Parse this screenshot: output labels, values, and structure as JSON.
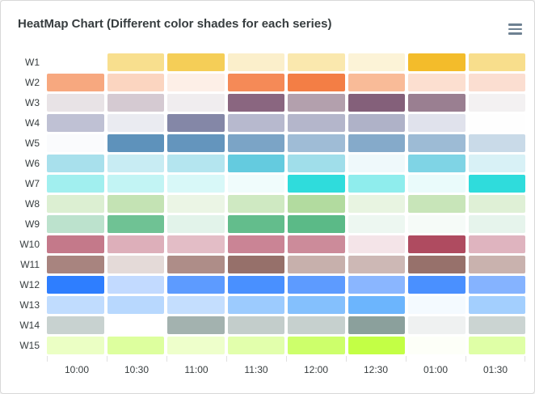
{
  "header": {
    "title": "HeatMap Chart (Different color shades for each series)"
  },
  "style": {
    "background": "#ffffff",
    "card_border": "#d8d8d8",
    "title_color": "#373d3f",
    "axis_label_color": "#373d3f",
    "tick_color": "#e0e0e0",
    "menu_icon_color": "#6e8192",
    "cell_gap_color": "#ffffff"
  },
  "chart_data": {
    "type": "heatmap",
    "title": "HeatMap Chart (Different color shades for each series)",
    "legend_position": "none",
    "grid": "off",
    "x_categories": [
      "10:00",
      "10:30",
      "11:00",
      "11:30",
      "12:00",
      "12:30",
      "01:00",
      "01:30"
    ],
    "y_categories": [
      "W1",
      "W2",
      "W3",
      "W4",
      "W5",
      "W6",
      "W7",
      "W8",
      "W9",
      "W10",
      "W11",
      "W12",
      "W13",
      "W14",
      "W15"
    ],
    "series": [
      {
        "name": "W1",
        "base_color": "#F3B415",
        "cell_colors": [
          "#FFFFFF",
          "#F8DF8E",
          "#F5CE57",
          "#FBEFCB",
          "#FAE8AE",
          "#FCF3D7",
          "#F3BC2B",
          "#F8DE8C"
        ]
      },
      {
        "name": "W2",
        "base_color": "#F27036",
        "cell_colors": [
          "#F7A87F",
          "#FBD5C0",
          "#FDEFE7",
          "#F58A57",
          "#F37E45",
          "#F9BB98",
          "#FCDFD0",
          "#FBDED1"
        ]
      },
      {
        "name": "W3",
        "base_color": "#663F59",
        "cell_colors": [
          "#E8E3E6",
          "#D5CAD2",
          "#F0EDEF",
          "#8A6680",
          "#B3A0AD",
          "#84607A",
          "#9A7F91",
          "#F3F1F2"
        ]
      },
      {
        "name": "W4",
        "base_color": "#6A6E94",
        "cell_colors": [
          "#BFC1D4",
          "#EAEBF1",
          "#8487A7",
          "#B7B9CE",
          "#B4B6CB",
          "#AFB2C8",
          "#E0E2EC",
          "#FEFEFE"
        ]
      },
      {
        "name": "W5",
        "base_color": "#4E88B4",
        "cell_colors": [
          "#FAFBFD",
          "#5E92BB",
          "#6495BD",
          "#7BA4C6",
          "#9FBCD6",
          "#85AACA",
          "#9DBBD5",
          "#C9DAE8"
        ]
      },
      {
        "name": "W6",
        "base_color": "#00A7C6",
        "cell_colors": [
          "#A8E0EC",
          "#C8ECF3",
          "#B4E5EF",
          "#64CBDF",
          "#A0DEEA",
          "#EFF9FB",
          "#7FD4E5",
          "#D8F1F6"
        ]
      },
      {
        "name": "W7",
        "base_color": "#18D8D8",
        "cell_colors": [
          "#A1EFEF",
          "#C2F4F4",
          "#D8F8F8",
          "#F0FCFC",
          "#2FDCDC",
          "#8FEDED",
          "#EAFBFB",
          "#2FDCDC"
        ]
      },
      {
        "name": "W8",
        "base_color": "#A9D794",
        "cell_colors": [
          "#DCEFD2",
          "#C4E3B4",
          "#EBF5E5",
          "#CFE9C2",
          "#B2DB9F",
          "#E8F4E1",
          "#C8E5B9",
          "#DFF0D6"
        ]
      },
      {
        "name": "W9",
        "base_color": "#46AF78",
        "cell_colors": [
          "#BCE2CD",
          "#6FC294",
          "#E2F3EA",
          "#63BD8C",
          "#5BBA87",
          "#EDF7F1",
          "#F6FBF8",
          "#E6F4EC"
        ]
      },
      {
        "name": "W10",
        "base_color": "#A93F55",
        "cell_colors": [
          "#C4798A",
          "#DDAFBA",
          "#E3BDC6",
          "#CA8495",
          "#CC8B9A",
          "#F4E4E8",
          "#AF4B60",
          "#DFB4BF"
        ]
      },
      {
        "name": "W11",
        "base_color": "#8C5E58",
        "cell_colors": [
          "#A8847F",
          "#E4DAD8",
          "#AE8D88",
          "#96706A",
          "#C7B0AC",
          "#CDB8B5",
          "#97716B",
          "#C9B2AE"
        ]
      },
      {
        "name": "W12",
        "base_color": "#2176FF",
        "cell_colors": [
          "#2E7EFF",
          "#C2DAFF",
          "#5D9BFF",
          "#4990FF",
          "#5D9BFF",
          "#8AB6FF",
          "#4A90FF",
          "#85B3FF"
        ]
      },
      {
        "name": "W13",
        "base_color": "#33A1FD",
        "cell_colors": [
          "#C0DCFE",
          "#B8D8FE",
          "#C4DEFE",
          "#9CCBFE",
          "#84C0FD",
          "#6CB5FD",
          "#F4FAFF",
          "#A3CFFE"
        ]
      },
      {
        "name": "W14",
        "base_color": "#7A918D",
        "cell_colors": [
          "#C8D2D0",
          "#FFFFFF",
          "#A3B2AF",
          "#C3CDCB",
          "#C6D0CE",
          "#8BA09C",
          "#EFF1F1",
          "#CBD4D2"
        ]
      },
      {
        "name": "W15",
        "base_color": "#BAFF29",
        "cell_colors": [
          "#EBFFC4",
          "#DDFF9E",
          "#EEFFCB",
          "#E2FFAC",
          "#CDFF6B",
          "#C3FF45",
          "#FDFFF8",
          "#DFFFA6"
        ]
      }
    ]
  }
}
